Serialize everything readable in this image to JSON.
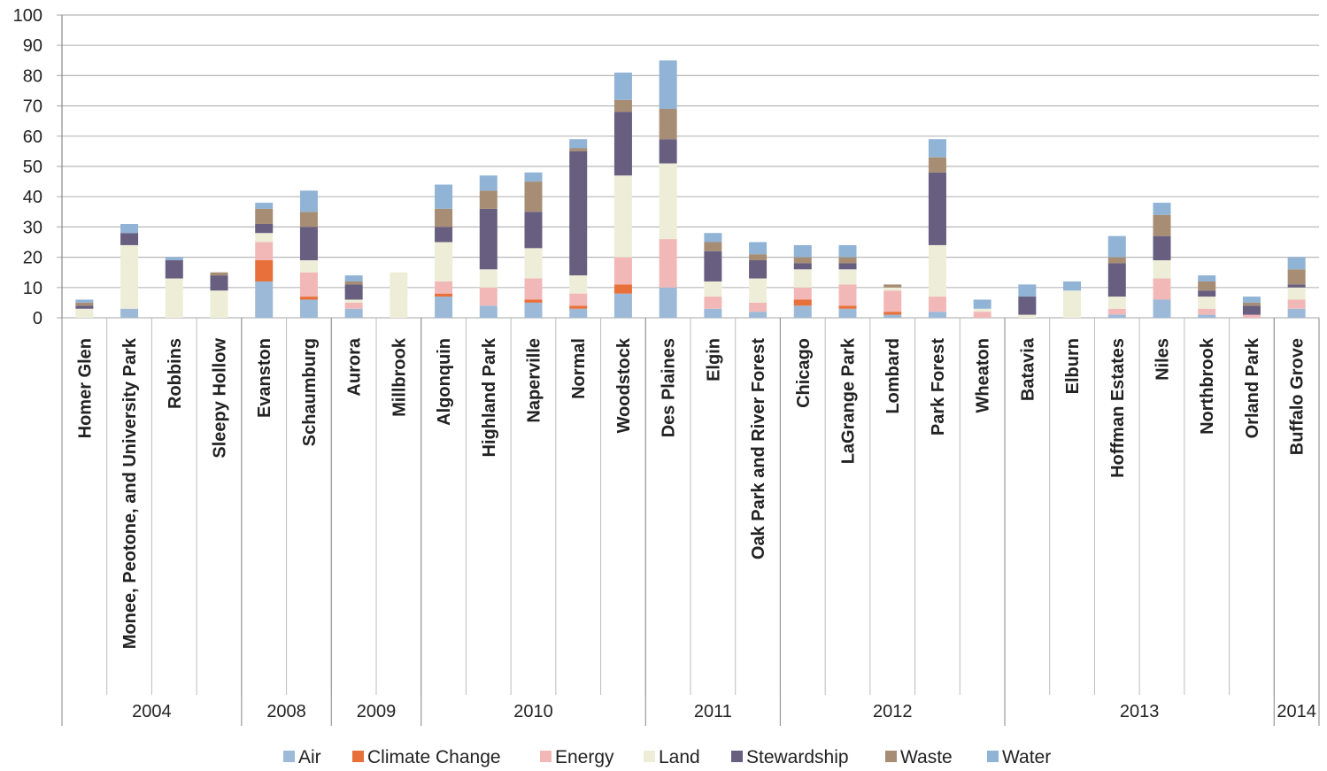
{
  "chart_data": {
    "type": "bar",
    "stacked": true,
    "ylim": [
      0,
      100
    ],
    "yticks": [
      0,
      10,
      20,
      30,
      40,
      50,
      60,
      70,
      80,
      90,
      100
    ],
    "grid": true,
    "legend_position": "bottom",
    "categories": [
      "Homer Glen",
      "Monee, Peotone, and University Park",
      "Robbins",
      "Sleepy Hollow",
      "Evanston",
      "Schaumburg",
      "Aurora",
      "Millbrook",
      "Algonquin",
      "Highland Park",
      "Naperville",
      "Normal",
      "Woodstock",
      "Des Plaines",
      "Elgin",
      "Oak Park and River Forest",
      "Chicago",
      "LaGrange Park",
      "Lombard",
      "Park Forest",
      "Wheaton",
      "Batavia",
      "Elburn",
      "Hoffman Estates",
      "Niles",
      "Northbrook",
      "Orland Park",
      "Buffalo Grove"
    ],
    "year_groups": [
      {
        "label": "2004",
        "count": 4
      },
      {
        "label": "2008",
        "count": 2
      },
      {
        "label": "2009",
        "count": 2
      },
      {
        "label": "2010",
        "count": 5
      },
      {
        "label": "2011",
        "count": 3
      },
      {
        "label": "2012",
        "count": 5
      },
      {
        "label": "2013",
        "count": 6
      },
      {
        "label": "2014",
        "count": 1
      }
    ],
    "series": [
      {
        "name": "Air",
        "color": "#9cbad8",
        "values": [
          0,
          3,
          0,
          0,
          12,
          6,
          3,
          0,
          7,
          4,
          5,
          3,
          8,
          10,
          3,
          2,
          4,
          3,
          1,
          2,
          0,
          0,
          0,
          1,
          6,
          1,
          0,
          3
        ]
      },
      {
        "name": "Climate Change",
        "color": "#e8703a",
        "values": [
          0,
          0,
          0,
          0,
          7,
          1,
          0,
          0,
          1,
          0,
          1,
          1,
          3,
          0,
          0,
          0,
          2,
          1,
          1,
          0,
          0,
          0,
          0,
          0,
          0,
          0,
          0,
          0
        ]
      },
      {
        "name": "Energy",
        "color": "#f2b8b8",
        "values": [
          0,
          0,
          0,
          0,
          6,
          8,
          2,
          0,
          4,
          6,
          7,
          4,
          9,
          16,
          4,
          3,
          4,
          7,
          7,
          5,
          2,
          0,
          0,
          2,
          7,
          2,
          1,
          3
        ]
      },
      {
        "name": "Land",
        "color": "#eeeed8",
        "values": [
          3,
          21,
          13,
          9,
          3,
          4,
          1,
          15,
          13,
          6,
          10,
          6,
          27,
          25,
          5,
          8,
          6,
          5,
          1,
          17,
          1,
          1,
          9,
          4,
          6,
          4,
          0,
          4
        ]
      },
      {
        "name": "Stewardship",
        "color": "#675e80",
        "values": [
          1,
          4,
          6,
          5,
          3,
          11,
          5,
          0,
          5,
          20,
          12,
          41,
          21,
          8,
          10,
          6,
          2,
          2,
          0,
          24,
          0,
          6,
          0,
          11,
          8,
          2,
          3,
          1
        ]
      },
      {
        "name": "Waste",
        "color": "#a68d73",
        "values": [
          1,
          0,
          0,
          1,
          5,
          5,
          1,
          0,
          6,
          6,
          10,
          1,
          4,
          10,
          3,
          2,
          2,
          2,
          1,
          5,
          0,
          0,
          0,
          2,
          7,
          3,
          1,
          5
        ]
      },
      {
        "name": "Water",
        "color": "#90b3d6",
        "values": [
          1,
          3,
          1,
          0,
          2,
          7,
          2,
          0,
          8,
          5,
          3,
          3,
          9,
          16,
          3,
          4,
          4,
          4,
          0,
          6,
          3,
          4,
          3,
          7,
          4,
          2,
          2,
          4
        ]
      }
    ]
  }
}
